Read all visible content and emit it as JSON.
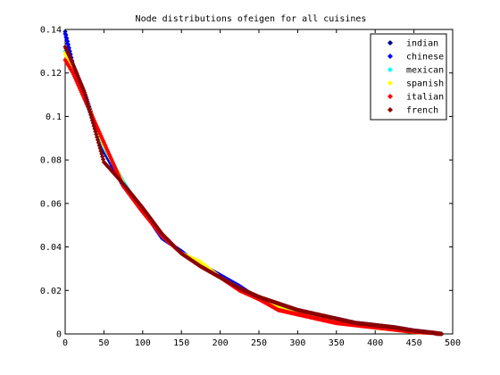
{
  "chart_data": {
    "type": "scatter",
    "title": "Node distributions ofeigen for all cuisines",
    "xlabel": "",
    "ylabel": "",
    "xlim": [
      0,
      500
    ],
    "ylim": [
      0,
      0.14
    ],
    "x_ticks": [
      0,
      50,
      100,
      150,
      200,
      250,
      300,
      350,
      400,
      450,
      500
    ],
    "y_ticks": [
      0,
      0.02,
      0.04,
      0.06,
      0.08,
      0.1,
      0.12,
      0.14
    ],
    "x_tick_labels": [
      "0",
      "50",
      "100",
      "150",
      "200",
      "250",
      "300",
      "350",
      "400",
      "450",
      "500"
    ],
    "y_tick_labels": [
      "0",
      "0.02",
      "0.04",
      "0.06",
      "0.08",
      "0.1",
      "0.12",
      "0.14"
    ],
    "grid": false,
    "legend_position": "top-right",
    "marker": "diamond",
    "series": [
      {
        "name": "indian",
        "color": "#00008b",
        "points": [
          [
            0,
            0.139
          ],
          [
            10,
            0.124
          ],
          [
            25,
            0.111
          ],
          [
            50,
            0.084
          ],
          [
            75,
            0.068
          ],
          [
            100,
            0.056
          ],
          [
            125,
            0.046
          ],
          [
            150,
            0.037
          ],
          [
            175,
            0.032
          ],
          [
            200,
            0.027
          ],
          [
            225,
            0.021
          ],
          [
            250,
            0.017
          ],
          [
            275,
            0.013
          ],
          [
            300,
            0.01
          ],
          [
            325,
            0.008
          ],
          [
            350,
            0.006
          ],
          [
            375,
            0.005
          ],
          [
            400,
            0.004
          ],
          [
            425,
            0.002
          ],
          [
            450,
            0.001
          ],
          [
            475,
            0.0005
          ],
          [
            485,
            0.0
          ]
        ]
      },
      {
        "name": "chinese",
        "color": "#0000ff",
        "points": [
          [
            0,
            0.138
          ],
          [
            10,
            0.123
          ],
          [
            25,
            0.11
          ],
          [
            50,
            0.085
          ],
          [
            75,
            0.068
          ],
          [
            100,
            0.057
          ],
          [
            125,
            0.044
          ],
          [
            150,
            0.038
          ],
          [
            175,
            0.031
          ],
          [
            200,
            0.027
          ],
          [
            225,
            0.022
          ],
          [
            250,
            0.016
          ],
          [
            275,
            0.012
          ],
          [
            300,
            0.009
          ],
          [
            325,
            0.008
          ],
          [
            350,
            0.007
          ],
          [
            375,
            0.005
          ],
          [
            400,
            0.004
          ],
          [
            425,
            0.003
          ],
          [
            450,
            0.0015
          ],
          [
            475,
            0.0005
          ],
          [
            480,
            0.0
          ]
        ]
      },
      {
        "name": "mexican",
        "color": "#00ffff",
        "points": [
          [
            0,
            0.13
          ],
          [
            10,
            0.122
          ],
          [
            25,
            0.108
          ],
          [
            50,
            0.086
          ],
          [
            75,
            0.07
          ],
          [
            100,
            0.056
          ],
          [
            125,
            0.046
          ],
          [
            150,
            0.037
          ],
          [
            175,
            0.032
          ],
          [
            200,
            0.026
          ],
          [
            225,
            0.021
          ],
          [
            250,
            0.016
          ],
          [
            275,
            0.012
          ],
          [
            300,
            0.01
          ],
          [
            325,
            0.007
          ],
          [
            350,
            0.006
          ],
          [
            375,
            0.005
          ],
          [
            400,
            0.003
          ],
          [
            425,
            0.002
          ],
          [
            450,
            0.001
          ],
          [
            475,
            0.0005
          ],
          [
            482,
            0.0
          ]
        ]
      },
      {
        "name": "spanish",
        "color": "#ffff00",
        "points": [
          [
            0,
            0.129
          ],
          [
            10,
            0.122
          ],
          [
            25,
            0.109
          ],
          [
            50,
            0.087
          ],
          [
            75,
            0.069
          ],
          [
            100,
            0.057
          ],
          [
            125,
            0.045
          ],
          [
            150,
            0.037
          ],
          [
            175,
            0.033
          ],
          [
            200,
            0.026
          ],
          [
            225,
            0.021
          ],
          [
            250,
            0.016
          ],
          [
            275,
            0.012
          ],
          [
            300,
            0.009
          ],
          [
            325,
            0.008
          ],
          [
            350,
            0.006
          ],
          [
            375,
            0.005
          ],
          [
            400,
            0.003
          ],
          [
            425,
            0.002
          ],
          [
            450,
            0.001
          ],
          [
            475,
            0.0005
          ],
          [
            484,
            0.0
          ]
        ]
      },
      {
        "name": "italian",
        "color": "#ff0000",
        "points": [
          [
            0,
            0.126
          ],
          [
            10,
            0.12
          ],
          [
            25,
            0.108
          ],
          [
            50,
            0.088
          ],
          [
            75,
            0.068
          ],
          [
            100,
            0.056
          ],
          [
            125,
            0.045
          ],
          [
            150,
            0.037
          ],
          [
            175,
            0.031
          ],
          [
            200,
            0.026
          ],
          [
            225,
            0.02
          ],
          [
            250,
            0.016
          ],
          [
            275,
            0.011
          ],
          [
            300,
            0.009
          ],
          [
            325,
            0.007
          ],
          [
            350,
            0.005
          ],
          [
            375,
            0.004
          ],
          [
            400,
            0.003
          ],
          [
            425,
            0.002
          ],
          [
            450,
            0.001
          ],
          [
            475,
            0.0005
          ],
          [
            483,
            0.0
          ]
        ]
      },
      {
        "name": "french",
        "color": "#8b0000",
        "points": [
          [
            0,
            0.132
          ],
          [
            10,
            0.124
          ],
          [
            25,
            0.111
          ],
          [
            50,
            0.079
          ],
          [
            75,
            0.069
          ],
          [
            100,
            0.058
          ],
          [
            125,
            0.046
          ],
          [
            150,
            0.037
          ],
          [
            175,
            0.031
          ],
          [
            200,
            0.026
          ],
          [
            225,
            0.021
          ],
          [
            250,
            0.017
          ],
          [
            275,
            0.014
          ],
          [
            300,
            0.011
          ],
          [
            325,
            0.009
          ],
          [
            350,
            0.007
          ],
          [
            375,
            0.005
          ],
          [
            400,
            0.004
          ],
          [
            425,
            0.003
          ],
          [
            450,
            0.0015
          ],
          [
            475,
            0.0005
          ],
          [
            486,
            0.0
          ]
        ]
      }
    ]
  }
}
